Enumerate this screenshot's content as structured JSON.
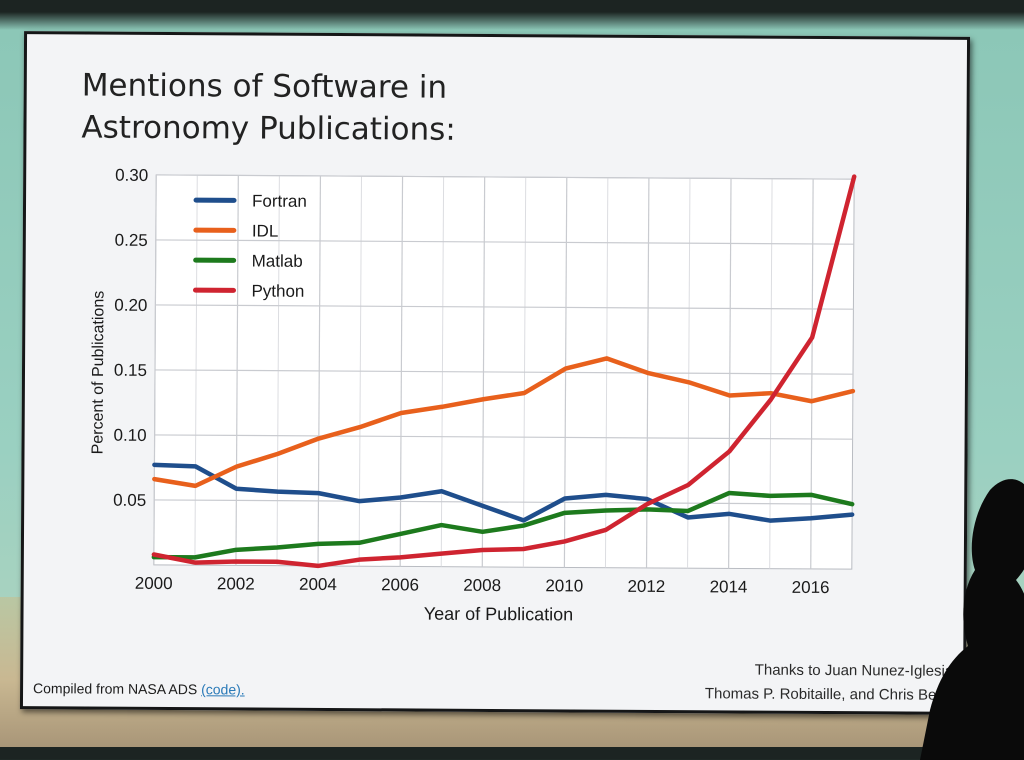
{
  "slide": {
    "title": "Mentions of Software in\nAstronomy Publications:",
    "footer_source_prefix": "Compiled from NASA ADS ",
    "footer_source_link": "(code).",
    "credit_line1": "Thanks to Juan Nunez-Iglesia",
    "credit_line2": "Thomas P. Robitaille, and Chris Beau"
  },
  "chart_data": {
    "type": "line",
    "title": "",
    "xlabel": "Year of Publication",
    "ylabel": "Percent of Publications",
    "xlim": [
      2000,
      2017
    ],
    "ylim": [
      0,
      0.3
    ],
    "x_ticks": [
      2000,
      2002,
      2004,
      2006,
      2008,
      2010,
      2012,
      2014,
      2016
    ],
    "y_ticks": [
      0.05,
      0.1,
      0.15,
      0.2,
      0.25,
      0.3
    ],
    "y_tick_labels": [
      "0.05",
      "0.10",
      "0.15",
      "0.20",
      "0.25",
      "0.30"
    ],
    "grid": true,
    "legend_position": "top-left",
    "x": [
      2000,
      2001,
      2002,
      2003,
      2004,
      2005,
      2006,
      2007,
      2008,
      2009,
      2010,
      2011,
      2012,
      2013,
      2014,
      2015,
      2016,
      2017
    ],
    "series": [
      {
        "name": "Fortran",
        "color": "#1f4e8c",
        "values": [
          0.077,
          0.076,
          0.059,
          0.057,
          0.056,
          0.05,
          0.053,
          0.058,
          0.047,
          0.036,
          0.053,
          0.056,
          0.053,
          0.039,
          0.042,
          0.037,
          0.039,
          0.042
        ]
      },
      {
        "name": "IDL",
        "color": "#e8601c",
        "values": [
          0.066,
          0.061,
          0.076,
          0.086,
          0.098,
          0.107,
          0.118,
          0.123,
          0.129,
          0.134,
          0.153,
          0.161,
          0.15,
          0.143,
          0.133,
          0.135,
          0.129,
          0.137
        ]
      },
      {
        "name": "Matlab",
        "color": "#1d7a1d",
        "values": [
          0.006,
          0.006,
          0.012,
          0.014,
          0.017,
          0.018,
          0.025,
          0.032,
          0.027,
          0.032,
          0.042,
          0.044,
          0.045,
          0.044,
          0.058,
          0.056,
          0.057,
          0.05
        ]
      },
      {
        "name": "Python",
        "color": "#cf2430",
        "values": [
          0.008,
          0.002,
          0.003,
          0.003,
          0.0,
          0.005,
          0.007,
          0.01,
          0.013,
          0.014,
          0.02,
          0.029,
          0.049,
          0.064,
          0.09,
          0.13,
          0.178,
          0.302
        ]
      }
    ]
  }
}
